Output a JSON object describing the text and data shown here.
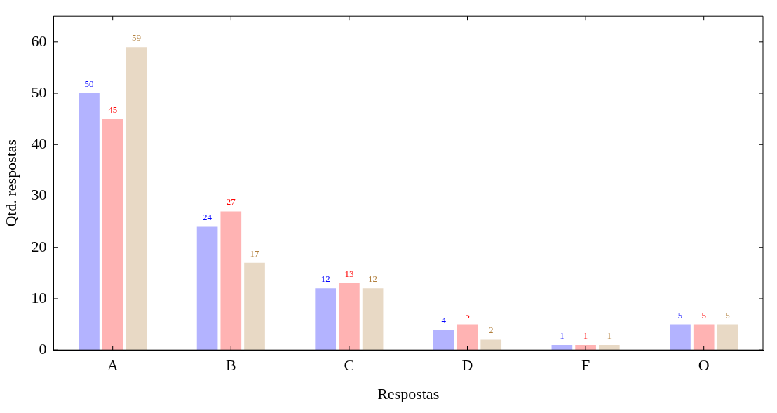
{
  "chart_data": {
    "type": "bar",
    "xlabel": "Respostas",
    "ylabel": "Qtd. respostas",
    "categories": [
      "A",
      "B",
      "C",
      "D",
      "F",
      "O"
    ],
    "series": [
      {
        "color": "#b3b3ff",
        "values": [
          50,
          24,
          12,
          4,
          1,
          5
        ]
      },
      {
        "color": "#ffb3b3",
        "values": [
          45,
          27,
          13,
          5,
          1,
          5
        ]
      },
      {
        "color": "#e8d9c5",
        "values": [
          59,
          17,
          12,
          2,
          1,
          5
        ]
      }
    ],
    "ylim": [
      0,
      65
    ],
    "yticks": [
      0,
      10,
      20,
      30,
      40,
      50,
      60
    ],
    "grid": false,
    "legend": false,
    "data_labels": true
  }
}
